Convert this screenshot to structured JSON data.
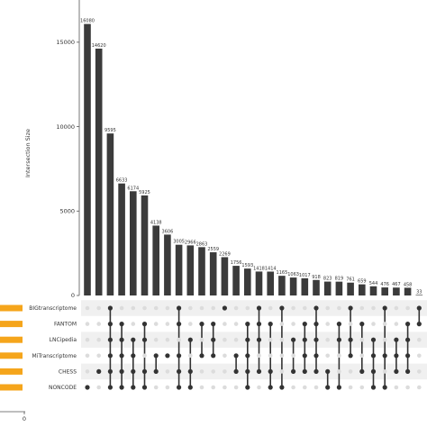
{
  "chart_data": {
    "type": "bar",
    "ylabel": "Intersection Size",
    "yticks": [
      0,
      5000,
      10000,
      15000
    ],
    "ylim": [
      0,
      17500
    ],
    "values": [
      16080,
      14620,
      9595,
      6633,
      6174,
      5925,
      4138,
      3606,
      3005,
      2966,
      2863,
      2559,
      2269,
      1756,
      1593,
      1418,
      1414,
      1165,
      1063,
      1017,
      918,
      823,
      819,
      761,
      659,
      544,
      476,
      467,
      458,
      33
    ],
    "value_labels": [
      "16080",
      "14620",
      "9595",
      "6633",
      "6174",
      "5925",
      "4138",
      "3606",
      "3005",
      "2966",
      "2863",
      "2559",
      "2269",
      "1756",
      "1593",
      "1418",
      "1414",
      "1165",
      "1063",
      "1017",
      "918",
      "823",
      "819",
      "761",
      "659",
      "544",
      "476",
      "467",
      "458",
      "33"
    ],
    "sets": [
      "BIGtranscriptome",
      "FANTOM",
      "LNCipedia",
      "MiTranscriptome",
      "CHESS",
      "NONCODE"
    ],
    "set_size_axis_label": "0",
    "matrix": [
      [
        5
      ],
      [
        4
      ],
      [
        0,
        1,
        2,
        3,
        4,
        5
      ],
      [
        1,
        2,
        3,
        4,
        5
      ],
      [
        2,
        3,
        4,
        5
      ],
      [
        1,
        2,
        4,
        5
      ],
      [
        3,
        4
      ],
      [
        3
      ],
      [
        0,
        1,
        3,
        4,
        5
      ],
      [
        2,
        4,
        5
      ],
      [
        1,
        3
      ],
      [
        1,
        2,
        3
      ],
      [
        0
      ],
      [
        3,
        4
      ],
      [
        1,
        2,
        3,
        4,
        5
      ],
      [
        0,
        1,
        2,
        4
      ],
      [
        1,
        4,
        5
      ],
      [
        0,
        5
      ],
      [
        2,
        4
      ],
      [
        1,
        2,
        3,
        4
      ],
      [
        0,
        1,
        2,
        3,
        4
      ],
      [
        4,
        5
      ],
      [
        1,
        2,
        5
      ],
      [
        0,
        2,
        3
      ],
      [
        1,
        4
      ],
      [
        2,
        3,
        4,
        5
      ],
      [
        0,
        3,
        5
      ],
      [
        2,
        3,
        4
      ],
      [
        1,
        2,
        3,
        4
      ],
      [
        0,
        1
      ]
    ],
    "colors": {
      "bar": "#3b3b3b",
      "set_bar": "#f5a51b",
      "dot_active": "#333333",
      "dot_inactive": "#dcdcdc",
      "stripe": "#f0f0f0"
    }
  }
}
